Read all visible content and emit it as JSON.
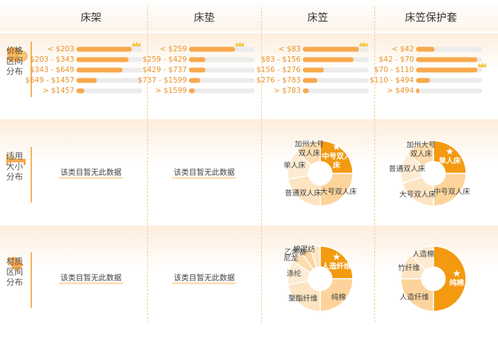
{
  "header": {
    "columns": [
      "床架",
      "床垫",
      "床笠",
      "床笠保护套"
    ]
  },
  "sections": [
    {
      "label": [
        "价格",
        "区间",
        "分布"
      ],
      "charts": [
        {
          "type": "bar",
          "categories": [
            "< $203",
            "$203 - $343",
            "$343 - $649",
            "$649 - $1457",
            "> $1457"
          ],
          "values": [
            84,
            79,
            70,
            31,
            12
          ],
          "crown": 0
        },
        {
          "type": "bar",
          "categories": [
            "< $259",
            "$259 - $429",
            "$429 - $737",
            "$737 - $1599",
            "> $1599"
          ],
          "values": [
            70,
            25,
            25,
            17,
            9
          ],
          "crown": 0
        },
        {
          "type": "bar",
          "categories": [
            "< $83",
            "$83 - $156",
            "$156 - $276",
            "$276 - $783",
            "> $783"
          ],
          "values": [
            85,
            77,
            32,
            22,
            9
          ],
          "crown": 0
        },
        {
          "type": "bar",
          "categories": [
            "< $42",
            "$42 - $70",
            "$70 - $110",
            "$110 - $494",
            "> $494"
          ],
          "values": [
            28,
            93,
            93,
            21,
            5
          ],
          "crown": 2
        }
      ]
    },
    {
      "label": [
        "适用",
        "大小",
        "分布"
      ],
      "charts": [
        {
          "message": "该类目暂无此数据"
        },
        {
          "message": "该类目暂无此数据"
        },
        {
          "type": "pie",
          "categories": [
            "中号双人床",
            "大号双人床",
            "普通双人床",
            "单人床",
            "加州大号双人床"
          ],
          "values": [
            25,
            25,
            22,
            15,
            13
          ],
          "highlight": 0
        },
        {
          "type": "pie",
          "categories": [
            "单人床",
            "中号双人床",
            "大号双人床",
            "普通双人床",
            "加州大号双人床"
          ],
          "values": [
            25,
            25,
            20,
            15,
            15
          ],
          "highlight": 0
        }
      ]
    },
    {
      "label": [
        "材质",
        "区间",
        "分布"
      ],
      "charts": [
        {
          "message": "该类目暂无此数据"
        },
        {
          "message": "该类目暂无此数据"
        },
        {
          "type": "pie",
          "categories": [
            "人造纤维",
            "纯棉",
            "聚酯纤维",
            "涤纶",
            "尼龙",
            "乙烯基",
            "棉混纺"
          ],
          "values": [
            25,
            25,
            22,
            12,
            6,
            5,
            5
          ],
          "highlight": 0
        },
        {
          "type": "pie",
          "categories": [
            "纯棉",
            "人造纤维",
            "竹纤维",
            "人造棉"
          ],
          "values": [
            50,
            25,
            13,
            12
          ],
          "highlight": 0
        }
      ]
    }
  ],
  "colors": {
    "bar": "#f7a94c",
    "track": "#ececec",
    "highlight": "#f39a10",
    "segments": [
      "#fcd49b",
      "#fde4c2",
      "#fdebd3",
      "#fcdcb0"
    ]
  }
}
